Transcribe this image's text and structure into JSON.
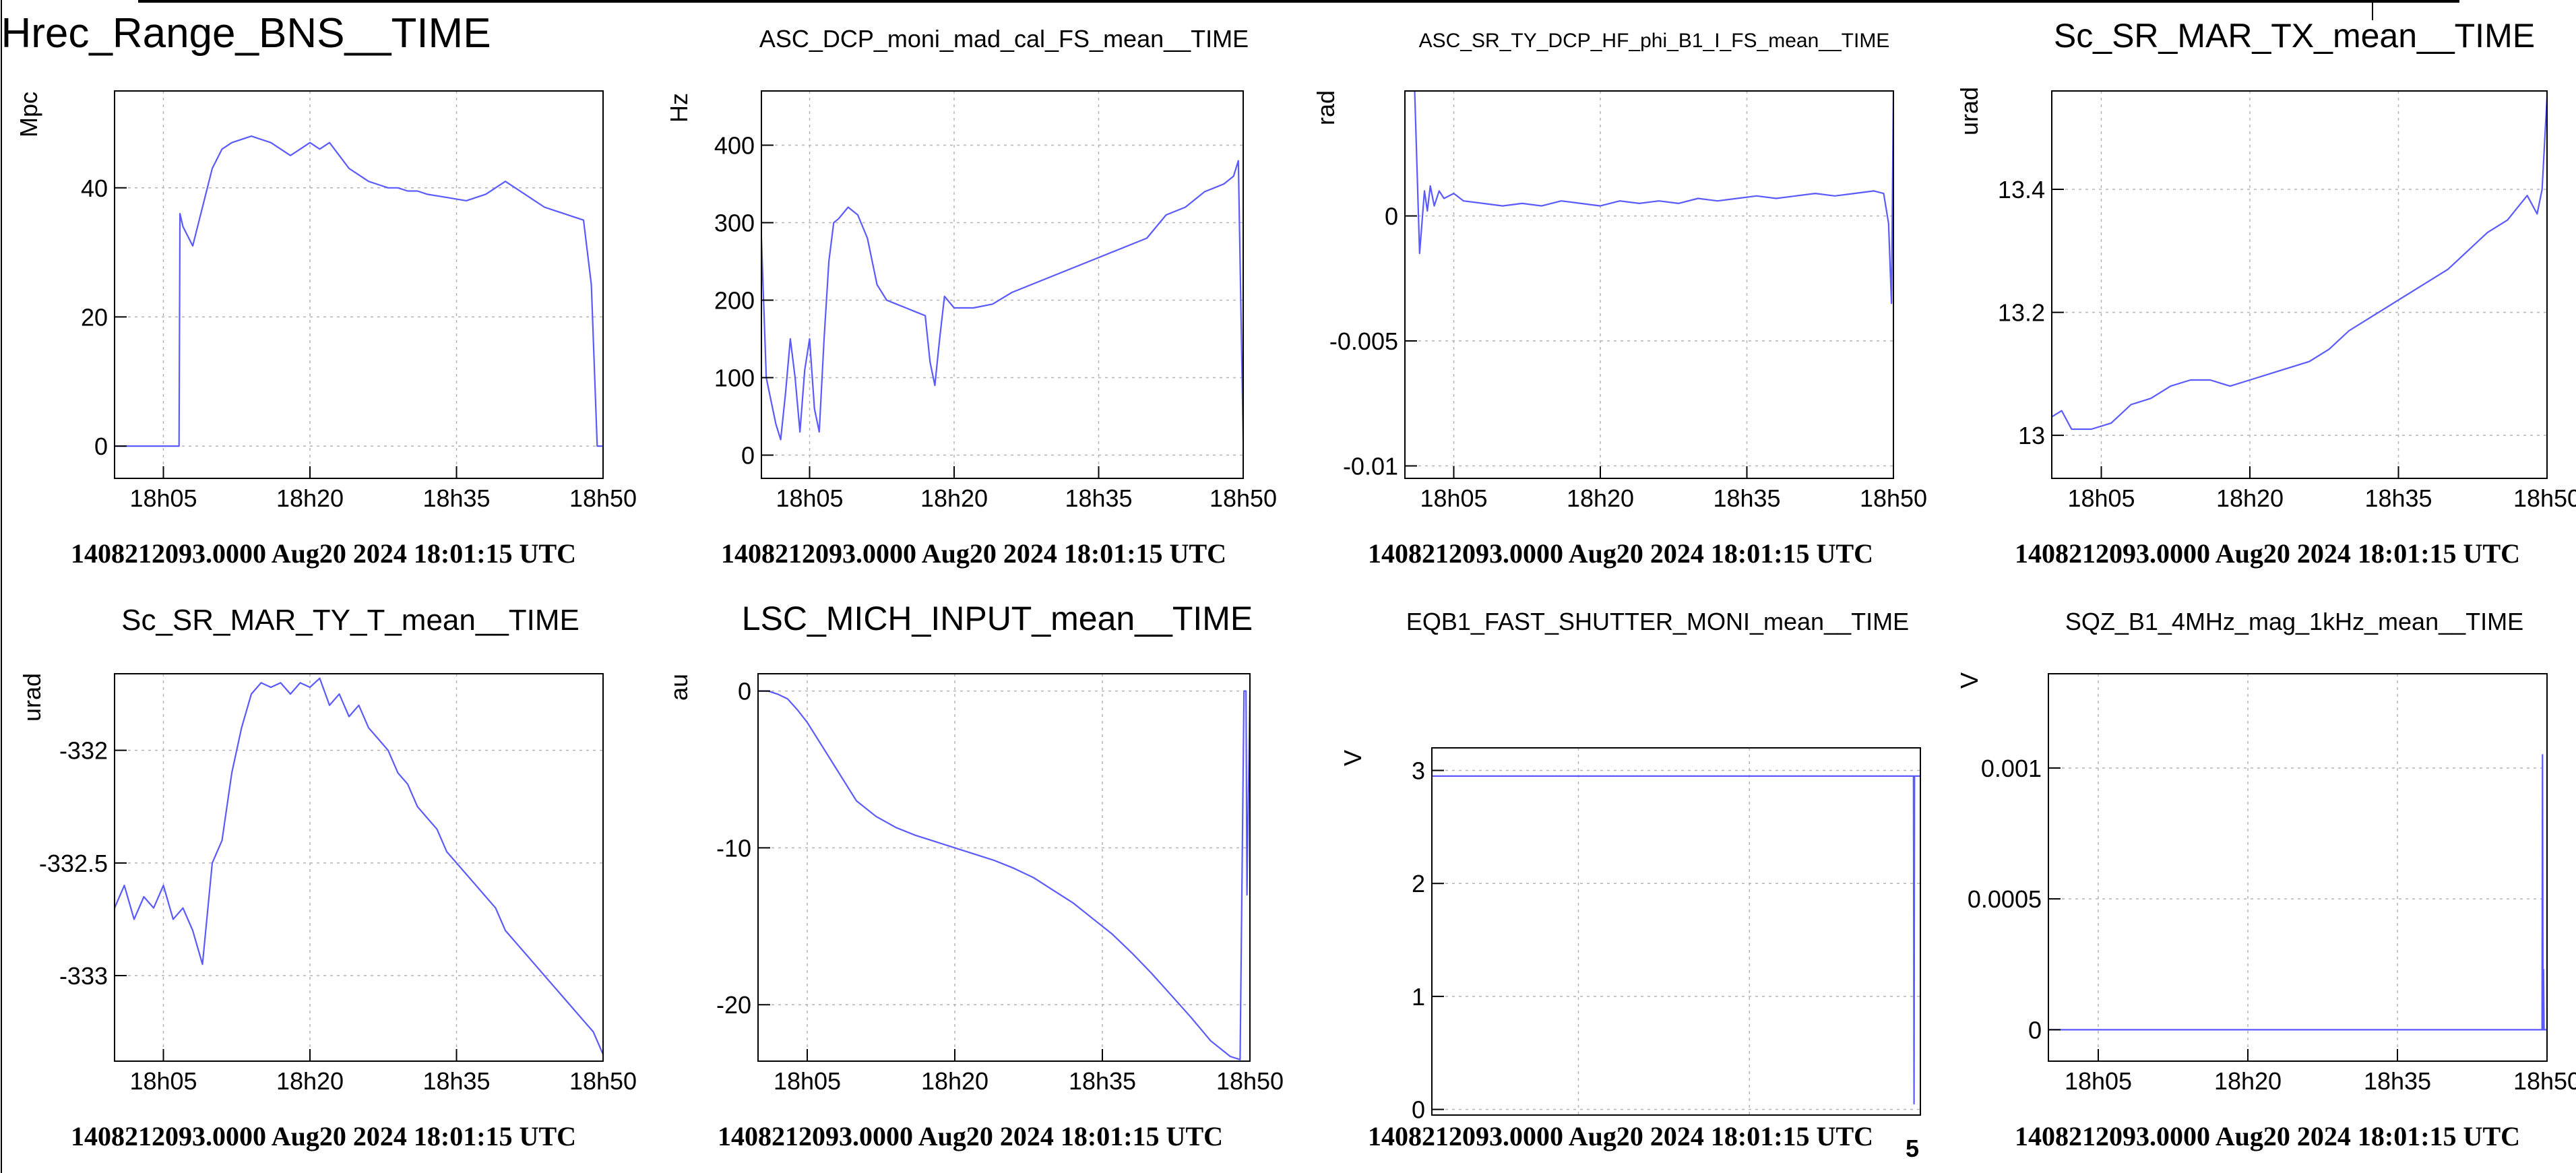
{
  "footer": "1408212093.0000 Aug20 2024 18:01:15 UTC",
  "colors": {
    "series": "#5a5aff",
    "grid": "#b3b3b3",
    "frame": "#000000"
  },
  "chart_data": [
    {
      "type": "line",
      "title": "Hrec_Range_BNS__TIME",
      "ylabel": "Mpc",
      "xlim": [
        0,
        50
      ],
      "ylim": [
        -5,
        55
      ],
      "xticks": [
        5,
        20,
        35,
        50
      ],
      "xticklabels": [
        "18h05",
        "18h20",
        "18h35",
        "18h50"
      ],
      "yticks": [
        0,
        20,
        40
      ],
      "yticklabels": [
        "0",
        "20",
        "40"
      ],
      "grid": true,
      "x": [
        0,
        6.6,
        6.7,
        7,
        8,
        9,
        10,
        11,
        12,
        14,
        16,
        18,
        19,
        20,
        21,
        22,
        23,
        24,
        25,
        26,
        27,
        28,
        29,
        30,
        31,
        32,
        34,
        36,
        38,
        40,
        42,
        43,
        44,
        45,
        46,
        47,
        48,
        48.8,
        49.4,
        49.7,
        50
      ],
      "y": [
        0,
        0,
        36,
        34,
        31,
        37,
        43,
        46,
        47,
        48,
        47,
        45,
        46,
        47,
        46,
        47,
        45,
        43,
        42,
        41,
        40.5,
        40,
        40,
        39.5,
        39.5,
        39,
        38.5,
        38,
        39,
        41,
        39,
        38,
        37,
        36.5,
        36,
        35.5,
        35,
        25,
        0,
        0,
        0
      ]
    },
    {
      "type": "line",
      "title": "ASC_DCP_moni_mad_cal_FS_mean__TIME",
      "ylabel": "Hz",
      "xlim": [
        0,
        50
      ],
      "ylim": [
        -30,
        470
      ],
      "xticks": [
        5,
        20,
        35,
        50
      ],
      "xticklabels": [
        "18h05",
        "18h20",
        "18h35",
        "18h50"
      ],
      "yticks": [
        0,
        100,
        200,
        300,
        400
      ],
      "yticklabels": [
        "0",
        "100",
        "200",
        "300",
        "400"
      ],
      "grid": true,
      "x": [
        0,
        0.5,
        1,
        1.5,
        2,
        2.5,
        3,
        3.5,
        4,
        4.5,
        5,
        5.5,
        6,
        6.5,
        7,
        7.5,
        8,
        9,
        10,
        11,
        12,
        13,
        14,
        15,
        16,
        17,
        17.5,
        18,
        18.5,
        19,
        20,
        22,
        24,
        26,
        28,
        30,
        32,
        34,
        36,
        38,
        40,
        42,
        44,
        45,
        46,
        47,
        48,
        49,
        49.5,
        50
      ],
      "y": [
        280,
        100,
        70,
        40,
        20,
        80,
        150,
        100,
        30,
        110,
        150,
        60,
        30,
        150,
        250,
        300,
        305,
        320,
        310,
        280,
        220,
        200,
        195,
        190,
        185,
        180,
        120,
        90,
        150,
        205,
        190,
        190,
        195,
        210,
        220,
        230,
        240,
        250,
        260,
        270,
        280,
        310,
        320,
        330,
        340,
        345,
        350,
        360,
        380,
        20
      ]
    },
    {
      "type": "line",
      "title": "ASC_SR_TY_DCP_HF_phi_B1_I_FS_mean__TIME",
      "ylabel": "rad",
      "xlim": [
        0,
        50
      ],
      "ylim": [
        -0.0105,
        0.005
      ],
      "xticks": [
        5,
        20,
        35,
        50
      ],
      "xticklabels": [
        "18h05",
        "18h20",
        "18h35",
        "18h50"
      ],
      "yticks": [
        -0.01,
        -0.005,
        0
      ],
      "yticklabels": [
        "-0.01",
        "-0.005",
        "0"
      ],
      "grid": true,
      "x": [
        0,
        1,
        1.5,
        2,
        2.3,
        2.6,
        3,
        3.5,
        4,
        5,
        6,
        8,
        10,
        12,
        14,
        16,
        18,
        20,
        22,
        24,
        26,
        28,
        30,
        32,
        34,
        36,
        38,
        40,
        42,
        44,
        46,
        48,
        49,
        49.5,
        49.8,
        50
      ],
      "y": [
        0.005,
        0.005,
        -0.0015,
        0.001,
        0.0002,
        0.0012,
        0.0004,
        0.001,
        0.0007,
        0.0009,
        0.0006,
        0.0005,
        0.0004,
        0.0005,
        0.0004,
        0.0006,
        0.0005,
        0.0004,
        0.0006,
        0.0005,
        0.0006,
        0.0005,
        0.0007,
        0.0006,
        0.0007,
        0.0008,
        0.0007,
        0.0008,
        0.0009,
        0.0008,
        0.0009,
        0.001,
        0.0009,
        -0.0003,
        -0.0035,
        0.005
      ]
    },
    {
      "type": "line",
      "title": "Sc_SR_MAR_TX_mean__TIME",
      "ylabel": "urad",
      "xlim": [
        0,
        50
      ],
      "ylim": [
        12.93,
        13.56
      ],
      "xticks": [
        5,
        20,
        35,
        50
      ],
      "xticklabels": [
        "18h05",
        "18h20",
        "18h35",
        "18h50"
      ],
      "yticks": [
        13,
        13.2,
        13.4
      ],
      "yticklabels": [
        "13",
        "13.2",
        "13.4"
      ],
      "grid": true,
      "x": [
        0,
        1,
        2,
        3,
        4,
        6,
        8,
        10,
        12,
        14,
        16,
        18,
        20,
        22,
        24,
        26,
        28,
        30,
        32,
        34,
        36,
        38,
        40,
        42,
        44,
        46,
        47,
        48,
        49,
        49.5,
        50
      ],
      "y": [
        13.03,
        13.04,
        13.01,
        13.01,
        13.01,
        13.02,
        13.05,
        13.06,
        13.08,
        13.09,
        13.09,
        13.08,
        13.09,
        13.1,
        13.11,
        13.12,
        13.14,
        13.17,
        13.19,
        13.21,
        13.23,
        13.25,
        13.27,
        13.3,
        13.33,
        13.35,
        13.37,
        13.39,
        13.36,
        13.4,
        13.55
      ]
    },
    {
      "type": "line",
      "title": "Sc_SR_MAR_TY_T_mean__TIME",
      "ylabel": "urad",
      "xlim": [
        0,
        50
      ],
      "ylim": [
        -333.38,
        -331.66
      ],
      "xticks": [
        5,
        20,
        35,
        50
      ],
      "xticklabels": [
        "18h05",
        "18h20",
        "18h35",
        "18h50"
      ],
      "yticks": [
        -333,
        -332.5,
        -332
      ],
      "yticklabels": [
        "-333",
        "-332.5",
        "-332"
      ],
      "grid": true,
      "x": [
        0,
        1,
        2,
        3,
        4,
        5,
        6,
        7,
        8,
        9,
        10,
        11,
        12,
        13,
        14,
        15,
        16,
        17,
        18,
        19,
        20,
        21,
        22,
        23,
        24,
        25,
        26,
        27,
        28,
        29,
        30,
        31,
        32,
        33,
        34,
        35,
        36,
        37,
        38,
        39,
        40,
        41,
        42,
        43,
        44,
        45,
        46,
        47,
        48,
        49,
        50
      ],
      "y": [
        -332.7,
        -332.6,
        -332.75,
        -332.65,
        -332.7,
        -332.6,
        -332.75,
        -332.7,
        -332.8,
        -332.95,
        -332.5,
        -332.4,
        -332.1,
        -331.9,
        -331.75,
        -331.7,
        -331.72,
        -331.7,
        -331.75,
        -331.7,
        -331.72,
        -331.68,
        -331.8,
        -331.75,
        -331.85,
        -331.8,
        -331.9,
        -331.95,
        -332,
        -332.1,
        -332.15,
        -332.25,
        -332.3,
        -332.35,
        -332.45,
        -332.5,
        -332.55,
        -332.6,
        -332.65,
        -332.7,
        -332.8,
        -332.85,
        -332.9,
        -332.95,
        -333,
        -333.05,
        -333.1,
        -333.15,
        -333.2,
        -333.25,
        -333.35
      ]
    },
    {
      "type": "line",
      "title": "LSC_MICH_INPUT_mean__TIME",
      "ylabel": "au",
      "xlim": [
        0,
        50
      ],
      "ylim": [
        -23.6,
        1.1
      ],
      "xticks": [
        5,
        20,
        35,
        50
      ],
      "xticklabels": [
        "18h05",
        "18h20",
        "18h35",
        "18h50"
      ],
      "yticks": [
        -20,
        -10,
        0
      ],
      "yticklabels": [
        "-20",
        "-10",
        "0"
      ],
      "grid": true,
      "x": [
        0,
        1,
        2,
        3,
        4,
        5,
        6,
        7,
        8,
        9,
        10,
        12,
        14,
        16,
        18,
        20,
        22,
        24,
        26,
        28,
        30,
        32,
        34,
        36,
        38,
        40,
        42,
        44,
        46,
        48,
        49,
        49.4,
        49.6,
        49.7,
        50
      ],
      "y": [
        0,
        0,
        -0.2,
        -0.5,
        -1.2,
        -2,
        -3,
        -4,
        -5,
        -6,
        -7,
        -8,
        -8.7,
        -9.2,
        -9.6,
        -10,
        -10.4,
        -10.8,
        -11.3,
        -11.9,
        -12.7,
        -13.5,
        -14.5,
        -15.5,
        -16.7,
        -18,
        -19.4,
        -20.8,
        -22.3,
        -23.3,
        -23.5,
        0,
        0,
        -13,
        0
      ]
    },
    {
      "type": "line",
      "title": "EQB1_FAST_SHUTTER_MONI_mean__TIME",
      "ylabel": "V",
      "xlim": [
        0,
        50
      ],
      "ylim": [
        -0.05,
        3.2
      ],
      "xticks": [],
      "xticklabels": [],
      "edge_xticklabel": "5",
      "yticks": [
        0,
        1,
        2,
        3
      ],
      "yticklabels": [
        "0",
        "1",
        "2",
        "3"
      ],
      "grid": true,
      "x": [
        0,
        49.3,
        49.35,
        49.4,
        50
      ],
      "y": [
        2.95,
        2.95,
        0.05,
        2.95,
        2.95
      ]
    },
    {
      "type": "line",
      "title": "SQZ_B1_4MHz_mag_1kHz_mean__TIME",
      "ylabel": "V",
      "xlim": [
        0,
        50
      ],
      "ylim": [
        -0.00012,
        0.00136
      ],
      "xticks": [
        5,
        20,
        35,
        50
      ],
      "xticklabels": [
        "18h05",
        "18h20",
        "18h35",
        "18h50"
      ],
      "yticks": [
        0,
        0.0005,
        0.001
      ],
      "yticklabels": [
        "0",
        "0.0005",
        "0.001"
      ],
      "grid": true,
      "x": [
        0,
        49.5,
        49.55,
        49.6,
        49.65,
        49.7,
        50
      ],
      "y": [
        0,
        0,
        0.00105,
        0,
        0.00023,
        0,
        0
      ]
    }
  ]
}
